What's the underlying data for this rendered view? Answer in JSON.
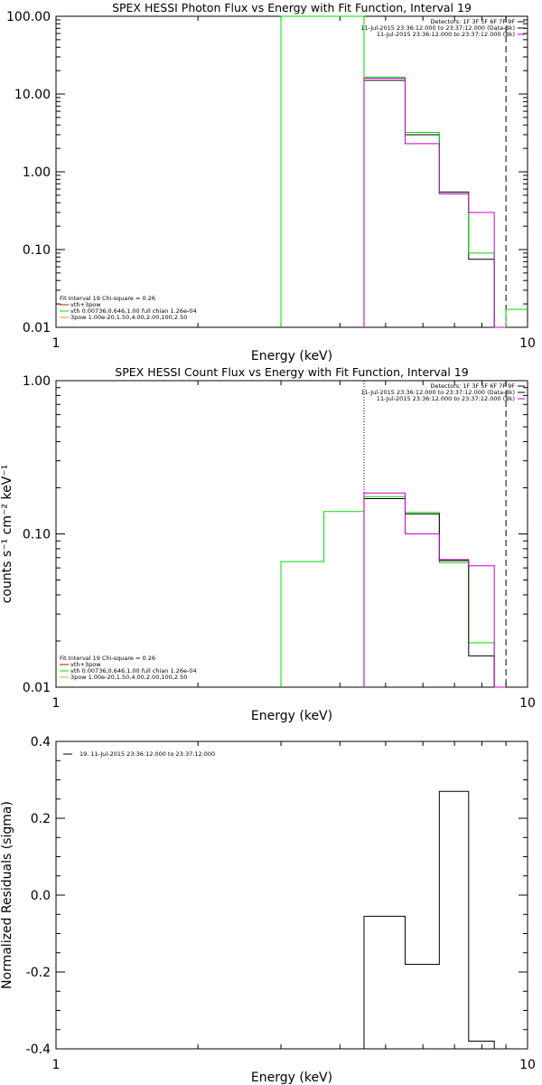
{
  "colors": {
    "black": "#000000",
    "green": "#00dd00",
    "magenta": "#cc00cc",
    "orange": "#ff9900",
    "red": "#dd0000",
    "background": "#ffffff"
  },
  "chart_data": [
    {
      "type": "line",
      "title": "SPEX HESSI Photon Flux vs Energy with Fit Function, Interval 19",
      "xlabel": "Energy (keV)",
      "ylabel": "",
      "xscale": "log",
      "yscale": "log",
      "xlim": [
        1,
        10
      ],
      "ylim": [
        0.01,
        100
      ],
      "x_ticks": [
        {
          "v": 1,
          "label": "1"
        },
        {
          "v": 10,
          "label": "10"
        }
      ],
      "y_ticks": [
        {
          "v": 0.01,
          "label": "0.01"
        },
        {
          "v": 0.1,
          "label": "0.10"
        },
        {
          "v": 1,
          "label": "1.00"
        },
        {
          "v": 10,
          "label": "10.00"
        },
        {
          "v": 100,
          "label": "100.00"
        }
      ],
      "header_lines": [
        "Detectors: 1F 3F 5F 6F 7F 9F",
        "11-Jul-2015 23:36:12.000 to 23:37:12.000 (Data-Bk)",
        "11-Jul-2015 23:36:12.000 to 23:37:12.000 (Bk)"
      ],
      "header_colors": [
        "black",
        "black",
        "magenta"
      ],
      "legend_lines": [
        "Fit Interval 19   Chi-square = 0.26",
        "vth+3pow",
        "vth 0.00736,0.646,1.00  full chian 1.26e-04",
        "3pow 1.00e-20,1.50,4.00,2.00,100,2.50"
      ],
      "legend_colors": [
        "black",
        "red",
        "green",
        "orange"
      ],
      "fit_range_dotted": 4.5,
      "fit_range_dashed": 9.0,
      "series": [
        {
          "color": "black",
          "edges": [
            4.5,
            5.5,
            6.5,
            7.5,
            8.5,
            9.0
          ],
          "values": [
            15,
            3.0,
            0.55,
            0.075,
            0.01
          ]
        },
        {
          "color": "green",
          "edges": [
            3.0,
            4.5,
            5.5,
            6.5,
            7.5,
            8.5,
            9.0,
            10.0
          ],
          "values": [
            100,
            16.5,
            3.2,
            0.52,
            0.09,
            0.01,
            0.017
          ]
        },
        {
          "color": "magenta",
          "edges": [
            4.5,
            5.5,
            6.5,
            7.5,
            8.5,
            9.0
          ],
          "values": [
            16,
            2.3,
            0.52,
            0.3,
            0.01
          ]
        }
      ]
    },
    {
      "type": "line",
      "title": "SPEX HESSI Count Flux vs Energy with Fit Function, Interval 19",
      "xlabel": "Energy (keV)",
      "ylabel": "counts s⁻¹ cm⁻² keV⁻¹",
      "xscale": "log",
      "yscale": "log",
      "xlim": [
        1,
        10
      ],
      "ylim": [
        0.01,
        1
      ],
      "x_ticks": [
        {
          "v": 1,
          "label": "1"
        },
        {
          "v": 10,
          "label": "10"
        }
      ],
      "y_ticks": [
        {
          "v": 0.01,
          "label": "0.01"
        },
        {
          "v": 0.1,
          "label": "0.10"
        },
        {
          "v": 1,
          "label": "1.00"
        }
      ],
      "header_lines": [
        "Detectors: 1F 3F 5F 6F 7F 9F",
        "11-Jul-2015 23:36:12.000 to 23:37:12.000 (Data-Bk)",
        "11-Jul-2015 23:36:12.000 to 23:37:12.000 (Bk)"
      ],
      "header_colors": [
        "black",
        "black",
        "magenta"
      ],
      "legend_lines": [
        "Fit Interval 19   Chi-square = 0.26",
        "vth+3pow",
        "vth 0.00736,0.646,1.00  full chian 1.26e-04",
        "3pow 1.00e-20,1.50,4.00,2.00,100,2.50"
      ],
      "legend_colors": [
        "black",
        "red",
        "green",
        "orange"
      ],
      "fit_range_dotted": 4.5,
      "fit_range_dashed": 9.0,
      "series": [
        {
          "color": "green",
          "edges": [
            3.0,
            3.7,
            4.5,
            5.5,
            6.5,
            7.5,
            8.5,
            9.0
          ],
          "values": [
            0.066,
            0.14,
            0.175,
            0.138,
            0.065,
            0.0195,
            0.01
          ]
        },
        {
          "color": "black",
          "edges": [
            4.5,
            5.5,
            6.5,
            7.5,
            8.5,
            9.0
          ],
          "values": [
            0.17,
            0.135,
            0.067,
            0.016,
            0.01
          ]
        },
        {
          "color": "magenta",
          "edges": [
            4.5,
            5.5,
            6.5,
            7.5,
            8.5,
            9.0
          ],
          "values": [
            0.185,
            0.1,
            0.068,
            0.062,
            0.01
          ]
        }
      ]
    },
    {
      "type": "line",
      "title": "",
      "xlabel": "Energy (keV)",
      "ylabel": "Normalized Residuals (sigma)",
      "xscale": "log",
      "yscale": "linear",
      "xlim": [
        1,
        10
      ],
      "ylim": [
        -0.4,
        0.4
      ],
      "x_ticks": [
        {
          "v": 1,
          "label": "1"
        },
        {
          "v": 10,
          "label": "10"
        }
      ],
      "y_ticks": [
        {
          "v": -0.4,
          "label": "-0.4"
        },
        {
          "v": -0.2,
          "label": "-0.2"
        },
        {
          "v": 0.0,
          "label": "0.0"
        },
        {
          "v": 0.2,
          "label": "0.2"
        },
        {
          "v": 0.4,
          "label": "0.4"
        }
      ],
      "header_lines": [],
      "header_colors": [],
      "legend_lines": [
        "19. 11-Jul-2015 23:36:12.000 to 23:37:12.000"
      ],
      "legend_colors": [
        "black"
      ],
      "series": [
        {
          "color": "black",
          "edges": [
            4.5,
            5.5,
            6.5,
            7.5,
            8.5,
            9.0
          ],
          "values": [
            -0.055,
            -0.18,
            0.27,
            -0.38,
            -0.4
          ]
        }
      ]
    }
  ]
}
